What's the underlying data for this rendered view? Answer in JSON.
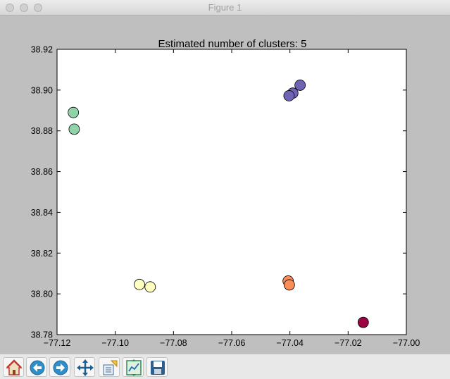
{
  "window": {
    "title": "Figure 1"
  },
  "toolbar": {
    "buttons": [
      {
        "name": "home-button",
        "icon": "home-icon"
      },
      {
        "name": "back-button",
        "icon": "back-arrow-icon"
      },
      {
        "name": "forward-button",
        "icon": "forward-arrow-icon"
      },
      {
        "name": "pan-button",
        "icon": "pan-move-icon"
      },
      {
        "name": "zoom-button",
        "icon": "zoom-rect-icon"
      },
      {
        "name": "subplots-button",
        "icon": "subplots-config-icon"
      },
      {
        "name": "save-button",
        "icon": "save-disk-icon"
      }
    ]
  },
  "chart_data": {
    "type": "scatter",
    "title": "Estimated number of clusters: 5",
    "xlabel": "",
    "ylabel": "",
    "xlim": [
      -77.12,
      -77.0
    ],
    "ylim": [
      38.78,
      38.92
    ],
    "xticks": [
      "−77.12",
      "−77.10",
      "−77.08",
      "−77.06",
      "−77.04",
      "−77.02",
      "−77.00"
    ],
    "yticks": [
      "38.78",
      "38.80",
      "38.82",
      "38.84",
      "38.86",
      "38.88",
      "38.90",
      "38.92"
    ],
    "grid": false,
    "series": [
      {
        "color": "#8fd3a9",
        "points": [
          [
            -77.1144,
            38.889
          ],
          [
            -77.1141,
            38.8808
          ]
        ]
      },
      {
        "color": "#ffffbf",
        "points": [
          [
            -77.0917,
            38.8046
          ],
          [
            -77.088,
            38.8034
          ]
        ]
      },
      {
        "color": "#6f64b4",
        "points": [
          [
            -77.0365,
            38.9024
          ],
          [
            -77.039,
            38.8985
          ],
          [
            -77.0403,
            38.8972
          ]
        ]
      },
      {
        "color": "#fb8d59",
        "points": [
          [
            -77.0406,
            38.8063
          ],
          [
            -77.0402,
            38.8044
          ]
        ]
      },
      {
        "color": "#9e0142",
        "points": [
          [
            -77.0148,
            38.786
          ]
        ]
      }
    ]
  }
}
